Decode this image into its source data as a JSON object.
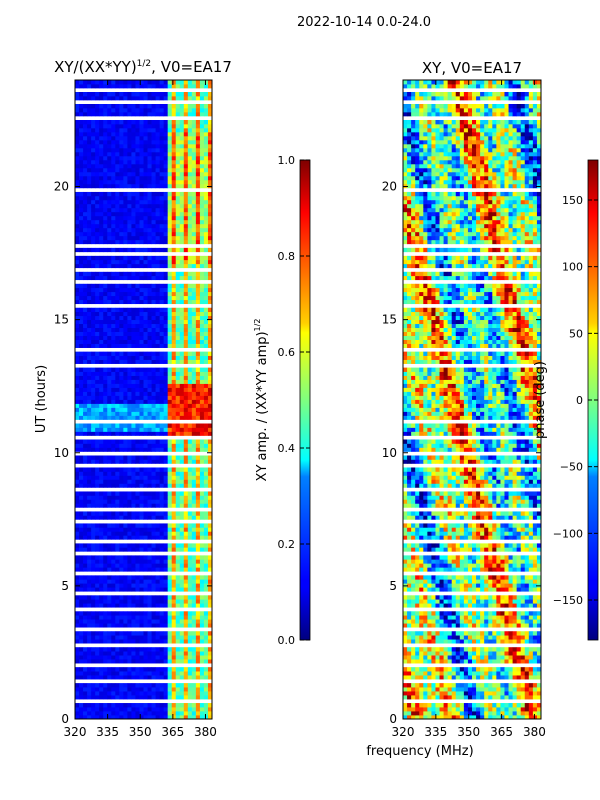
{
  "suptitle": "2022-10-14 0.0-24.0",
  "xlabel": "frequency (MHz)",
  "chart_data": [
    {
      "type": "heatmap",
      "title": "XY/(XX*YY)",
      "title_superscript": "1/2",
      "title_suffix": ", V0=EA17",
      "xlabel": "",
      "ylabel": "UT (hours)",
      "xlim": [
        320,
        383
      ],
      "ylim": [
        0,
        24
      ],
      "xticks": [
        320,
        335,
        350,
        365,
        380
      ],
      "yticks": [
        0,
        5,
        10,
        15,
        20
      ],
      "colorbar": {
        "label": "XY amp. / (XX*YY amp)",
        "label_superscript": "1/2",
        "range": [
          0.0,
          1.0
        ],
        "ticks": [
          "0.0",
          "0.2",
          "0.4",
          "0.6",
          "0.8",
          "1.0"
        ],
        "colormap": "jet"
      }
    },
    {
      "type": "heatmap",
      "title": "XY, V0=EA17",
      "xlabel": "frequency (MHz)",
      "ylabel": "",
      "xlim": [
        320,
        383
      ],
      "ylim": [
        0,
        24
      ],
      "xticks": [
        320,
        335,
        350,
        365,
        380
      ],
      "yticks": [
        0,
        5,
        10,
        15,
        20
      ],
      "colorbar": {
        "label": "phase (deg)",
        "range": [
          -180,
          180
        ],
        "ticks": [
          "150",
          "100",
          "50",
          "0",
          "−50",
          "−100",
          "−150"
        ],
        "tick_values": [
          150,
          100,
          50,
          0,
          -50,
          -100,
          -150
        ],
        "colormap": "jet"
      }
    }
  ]
}
